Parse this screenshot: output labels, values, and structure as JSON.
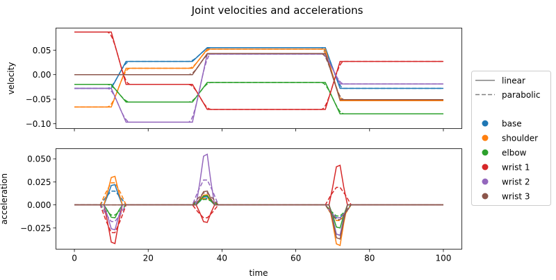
{
  "title": "Joint velocities and accelerations",
  "legend": {
    "styles": [
      {
        "label": "linear",
        "dash": "solid",
        "color": "#808080"
      },
      {
        "label": "parabolic",
        "dash": "dashed",
        "color": "#808080"
      }
    ],
    "joints": [
      {
        "label": "base",
        "color": "#1f77b4"
      },
      {
        "label": "shoulder",
        "color": "#ff7f0e"
      },
      {
        "label": "elbow",
        "color": "#2ca02c"
      },
      {
        "label": "wrist 1",
        "color": "#d62728"
      },
      {
        "label": "wrist 2",
        "color": "#9467bd"
      },
      {
        "label": "wrist 3",
        "color": "#8c564b"
      }
    ]
  },
  "chart_data": [
    {
      "type": "line",
      "ylabel": "velocity",
      "xlabel": "",
      "xlim": [
        -5,
        105
      ],
      "ylim": [
        -0.11,
        0.095
      ],
      "yticks": [
        -0.1,
        -0.05,
        0.0,
        0.05
      ],
      "ytick_labels": [
        "−0.10",
        "−0.05",
        "0.00",
        "0.05"
      ],
      "xticks": [
        0,
        20,
        40,
        60,
        80,
        100
      ],
      "xtick_labels_visible": false,
      "segments": {
        "times": [
          0,
          10,
          32,
          37,
          68,
          72,
          100
        ],
        "ramp": 4
      },
      "series": [
        {
          "name": "base",
          "color": "#1f77b4",
          "values": [
            -0.028,
            0.027,
            0.055,
            -0.028
          ]
        },
        {
          "name": "shoulder",
          "color": "#ff7f0e",
          "values": [
            -0.066,
            0.013,
            0.052,
            -0.053
          ]
        },
        {
          "name": "elbow",
          "color": "#2ca02c",
          "values": [
            -0.02,
            -0.056,
            -0.016,
            -0.08
          ]
        },
        {
          "name": "wrist 1",
          "color": "#d62728",
          "values": [
            0.087,
            -0.02,
            -0.071,
            0.027
          ]
        },
        {
          "name": "wrist 2",
          "color": "#9467bd",
          "values": [
            -0.028,
            -0.097,
            0.042,
            -0.019
          ]
        },
        {
          "name": "wrist 3",
          "color": "#8c564b",
          "values": [
            0.0,
            0.0,
            0.043,
            -0.051
          ]
        }
      ]
    },
    {
      "type": "line",
      "ylabel": "acceleration",
      "xlabel": "time",
      "xlim": [
        -5,
        105
      ],
      "ylim": [
        -0.048,
        0.061
      ],
      "yticks": [
        -0.025,
        0.0,
        0.025,
        0.05
      ],
      "ytick_labels": [
        "−0.025",
        "0.000",
        "0.025",
        "0.050"
      ],
      "xticks": [
        0,
        20,
        40,
        60,
        80,
        100
      ],
      "xtick_labels": [
        "0",
        "20",
        "40",
        "60",
        "80",
        "100"
      ],
      "pulse_centers": [
        10,
        35,
        71
      ],
      "series": [
        {
          "name": "base",
          "color": "#1f77b4",
          "linear": [
            0.022,
            0.009,
            -0.033
          ],
          "parabolic": [
            0.015,
            0.007,
            -0.014
          ]
        },
        {
          "name": "shoulder",
          "color": "#ff7f0e",
          "linear": [
            0.031,
            0.011,
            -0.044
          ],
          "parabolic": [
            0.024,
            0.007,
            -0.017
          ]
        },
        {
          "name": "elbow",
          "color": "#2ca02c",
          "linear": [
            -0.014,
            0.01,
            -0.025
          ],
          "parabolic": [
            -0.011,
            0.006,
            -0.012
          ]
        },
        {
          "name": "wrist 1",
          "color": "#d62728",
          "linear": [
            -0.042,
            -0.019,
            0.043
          ],
          "parabolic": [
            -0.03,
            -0.014,
            0.019
          ]
        },
        {
          "name": "wrist 2",
          "color": "#9467bd",
          "linear": [
            -0.027,
            0.055,
            -0.033
          ],
          "parabolic": [
            -0.018,
            0.027,
            -0.014
          ]
        },
        {
          "name": "wrist 3",
          "color": "#8c564b",
          "linear": [
            0.0,
            0.015,
            -0.037
          ],
          "parabolic": [
            0.0,
            0.013,
            -0.016
          ]
        }
      ]
    }
  ]
}
